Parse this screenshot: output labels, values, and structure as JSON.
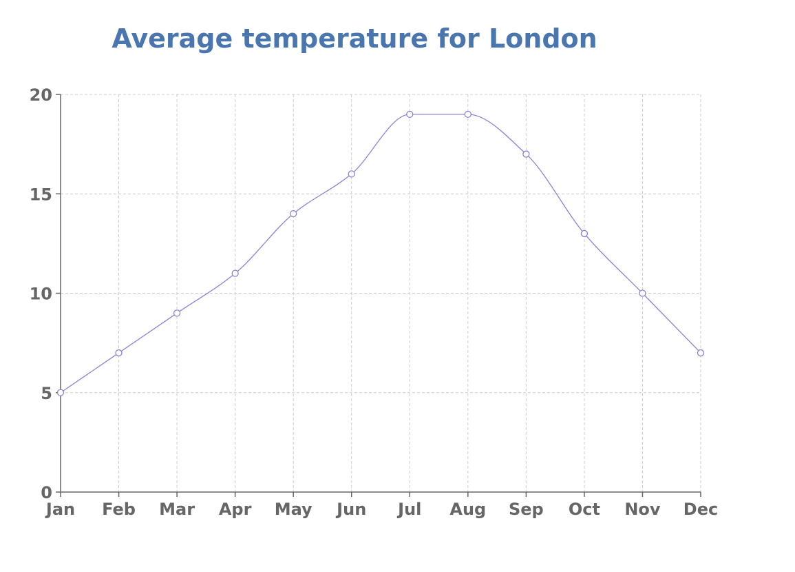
{
  "chart_data": {
    "type": "line",
    "title": "Average temperature for London",
    "xlabel": "",
    "ylabel": "",
    "categories": [
      "Jan",
      "Feb",
      "Mar",
      "Apr",
      "May",
      "Jun",
      "Jul",
      "Aug",
      "Sep",
      "Oct",
      "Nov",
      "Dec"
    ],
    "values": [
      5,
      7,
      9,
      11,
      14,
      16,
      19,
      19,
      17,
      13,
      10,
      7
    ],
    "ylim": [
      0,
      20
    ],
    "yticks": [
      0,
      5,
      10,
      15,
      20
    ],
    "grid": true,
    "legend": "none",
    "curve": "monotone",
    "colors": {
      "title": "#4a76b0",
      "series": "#8884d8",
      "axis": "#666666",
      "grid": "#cccccc"
    }
  }
}
